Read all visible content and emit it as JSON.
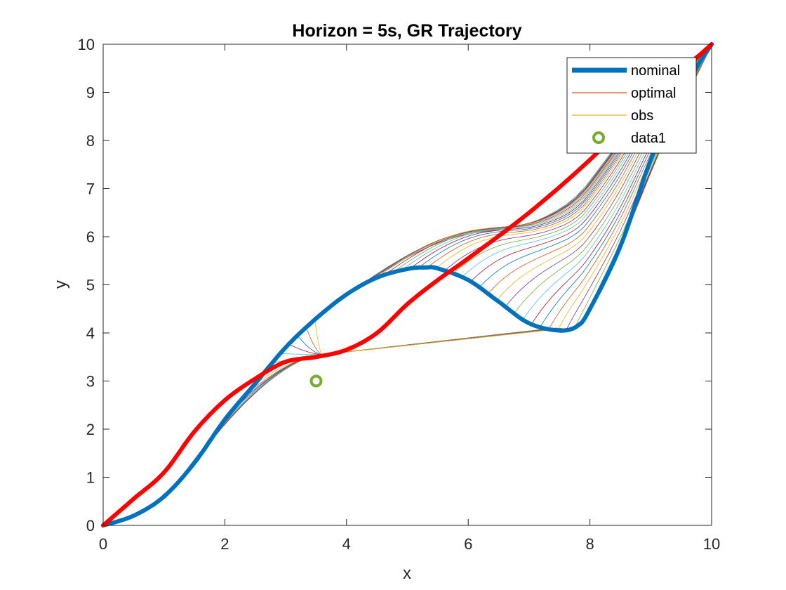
{
  "chart_data": {
    "type": "line",
    "title": "Horizon = 5s, GR Trajectory",
    "xlabel": "x",
    "ylabel": "y",
    "xlim": [
      0,
      10
    ],
    "ylim": [
      0,
      10
    ],
    "xticks": [
      "0",
      "2",
      "4",
      "6",
      "8",
      "10"
    ],
    "yticks": [
      "0",
      "1",
      "2",
      "3",
      "4",
      "5",
      "6",
      "7",
      "8",
      "9",
      "10"
    ],
    "grid": false,
    "legend_position": "top-right",
    "legend": [
      {
        "label": "nominal",
        "style": "thick-line",
        "color": "#0072BD"
      },
      {
        "label": "optimal",
        "style": "line",
        "color": "#D95319"
      },
      {
        "label": "obs",
        "style": "line",
        "color": "#EDB120"
      },
      {
        "label": "data1",
        "style": "circle-marker",
        "color": "#77AC30"
      }
    ],
    "series": [
      {
        "name": "nominal",
        "color": "#0072BD",
        "x": [
          0,
          0.5,
          1,
          1.5,
          2,
          2.5,
          3,
          3.5,
          4,
          4.5,
          5,
          5.3,
          5.5,
          6,
          6.5,
          7,
          7.5,
          7.8,
          8,
          8.5,
          9,
          9.5,
          10
        ],
        "y": [
          0,
          0.2,
          0.6,
          1.3,
          2.2,
          2.95,
          3.7,
          4.3,
          4.8,
          5.15,
          5.33,
          5.36,
          5.34,
          5.1,
          4.65,
          4.2,
          4.05,
          4.15,
          4.5,
          5.8,
          7.6,
          9.0,
          10
        ]
      },
      {
        "name": "red path",
        "color": "#FF0000",
        "x": [
          0,
          0.5,
          1,
          1.5,
          2,
          2.5,
          3,
          3.5,
          4,
          4.5,
          5,
          5.5,
          6,
          7,
          8,
          9,
          10
        ],
        "y": [
          0,
          0.55,
          1.1,
          1.95,
          2.6,
          3.05,
          3.4,
          3.5,
          3.65,
          4.0,
          4.6,
          5.1,
          5.55,
          6.5,
          7.6,
          8.85,
          10
        ]
      }
    ],
    "optimal_family": {
      "count": 60,
      "branch_start_range": [
        1.2,
        9.6
      ],
      "pass_through": {
        "x": 3.6,
        "y": 3.55
      },
      "end_point": {
        "x": 10,
        "y": 10
      },
      "colors": [
        "#0072BD",
        "#D95319",
        "#EDB120",
        "#7E2F8E",
        "#77AC30",
        "#4DBEEE",
        "#A2142F"
      ]
    },
    "markers": [
      {
        "name": "data1",
        "x": 3.5,
        "y": 3.0,
        "color": "#77AC30"
      }
    ]
  }
}
